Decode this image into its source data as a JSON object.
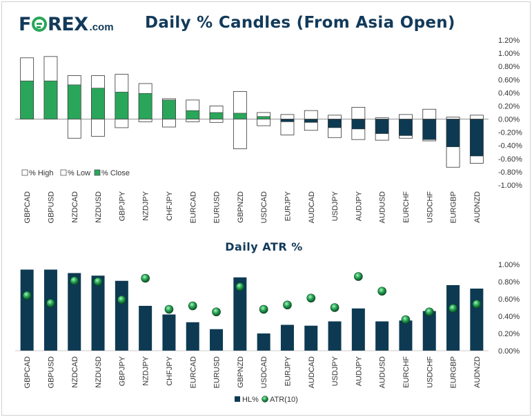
{
  "logo": {
    "brand": "FOREX",
    "domain": ".com"
  },
  "colors": {
    "navy": "#123a5a",
    "green": "#2aa65a",
    "bar": "#0d3a52",
    "white": "#ffffff"
  },
  "chart_data": [
    {
      "type": "bar",
      "title": "Daily % Candles (From Asia Open)",
      "categories": [
        "GBPCAD",
        "GBPUSD",
        "NZDCAD",
        "NZDUSD",
        "GBPJPY",
        "NZDJPY",
        "CHFJPY",
        "EURCAD",
        "EURUSD",
        "GBPNZD",
        "USDCAD",
        "EURJPY",
        "AUDCAD",
        "USDJPY",
        "AUDJPY",
        "AUDUSD",
        "EURCHF",
        "USDCHF",
        "EURGBP",
        "AUDNZD"
      ],
      "series": [
        {
          "name": "% High",
          "values": [
            0.93,
            0.95,
            0.66,
            0.66,
            0.68,
            0.54,
            0.31,
            0.29,
            0.2,
            0.42,
            0.1,
            0.07,
            0.13,
            0.06,
            0.18,
            0.02,
            0.07,
            0.15,
            0.03,
            0.06
          ]
        },
        {
          "name": "% Low",
          "values": [
            0.0,
            0.0,
            -0.29,
            -0.26,
            -0.13,
            -0.04,
            -0.12,
            -0.04,
            -0.05,
            -0.45,
            -0.1,
            -0.24,
            -0.17,
            -0.28,
            -0.31,
            -0.32,
            -0.29,
            -0.33,
            -0.73,
            -0.67
          ]
        },
        {
          "name": "% Close",
          "values": [
            0.58,
            0.58,
            0.52,
            0.47,
            0.41,
            0.39,
            0.29,
            0.13,
            0.1,
            0.09,
            0.04,
            -0.04,
            -0.05,
            -0.13,
            -0.15,
            -0.22,
            -0.25,
            -0.31,
            -0.42,
            -0.56
          ]
        }
      ],
      "ylim": [
        -1.0,
        1.2
      ],
      "yticks": [
        "1.20%",
        "1.00%",
        "0.80%",
        "0.60%",
        "0.40%",
        "0.20%",
        "0.00%",
        "-0.20%",
        "-0.40%",
        "-0.60%",
        "-0.80%",
        "-1.00%"
      ],
      "legend": [
        "% High",
        "% Low",
        "% Close"
      ],
      "legend_position": "bottom-left"
    },
    {
      "type": "bar",
      "title": "Daily ATR %",
      "categories": [
        "GBPCAD",
        "GBPUSD",
        "NZDCAD",
        "NZDUSD",
        "GBPJPY",
        "NZDJPY",
        "CHFJPY",
        "EURCAD",
        "EURUSD",
        "GBPNZD",
        "USDCAD",
        "EURJPY",
        "AUDCAD",
        "USDJPY",
        "AUDJPY",
        "AUDUSD",
        "EURCHF",
        "USDCHF",
        "EURGBP",
        "AUDNZD"
      ],
      "series": [
        {
          "name": "HL%",
          "values": [
            0.94,
            0.94,
            0.9,
            0.87,
            0.81,
            0.52,
            0.42,
            0.33,
            0.25,
            0.85,
            0.2,
            0.3,
            0.29,
            0.34,
            0.49,
            0.34,
            0.35,
            0.46,
            0.76,
            0.72
          ]
        },
        {
          "name": "ATR(10)",
          "values": [
            0.64,
            0.55,
            0.81,
            0.8,
            0.59,
            0.84,
            0.48,
            0.52,
            0.45,
            0.74,
            0.48,
            0.53,
            0.61,
            0.5,
            0.86,
            0.69,
            0.36,
            0.45,
            0.49,
            0.54
          ]
        }
      ],
      "ylim": [
        0.0,
        1.0
      ],
      "yticks": [
        "1.00%",
        "0.80%",
        "0.60%",
        "0.40%",
        "0.20%",
        "0.00%"
      ],
      "legend": [
        "HL%",
        "ATR(10)"
      ],
      "legend_position": "bottom-center"
    }
  ]
}
